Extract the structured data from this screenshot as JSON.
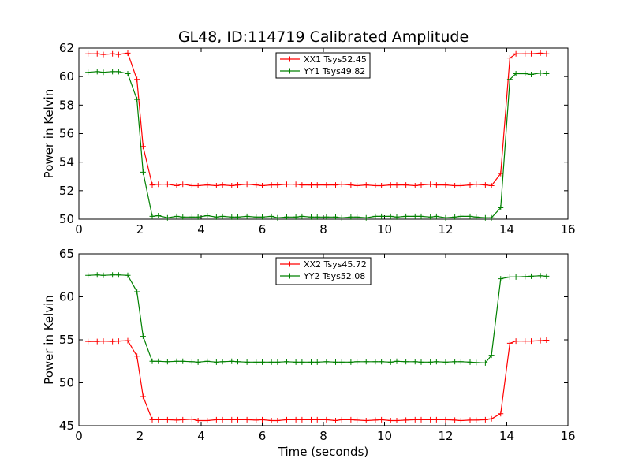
{
  "chart_data": [
    {
      "type": "line",
      "title": "GL48, ID:114719 Calibrated Amplitude",
      "xlabel": "",
      "ylabel": "Power in Kelvin",
      "xlim": [
        0,
        16
      ],
      "ylim": [
        50,
        62
      ],
      "xticks": [
        0,
        2,
        4,
        6,
        8,
        10,
        12,
        14,
        16
      ],
      "yticks": [
        50,
        52,
        54,
        56,
        58,
        60,
        62
      ],
      "legend": "top-center",
      "grid": false,
      "x": [
        0.3,
        0.6,
        0.8,
        1.1,
        1.3,
        1.6,
        1.9,
        2.1,
        2.4,
        2.6,
        2.9,
        3.2,
        3.4,
        3.7,
        3.9,
        4.2,
        4.5,
        4.7,
        5.0,
        5.2,
        5.5,
        5.8,
        6.0,
        6.3,
        6.5,
        6.8,
        7.1,
        7.3,
        7.6,
        7.8,
        8.1,
        8.4,
        8.6,
        8.9,
        9.1,
        9.4,
        9.7,
        9.9,
        10.2,
        10.4,
        10.7,
        11.0,
        11.2,
        11.5,
        11.7,
        12.0,
        12.3,
        12.5,
        12.8,
        13.0,
        13.3,
        13.5,
        13.8,
        14.1,
        14.3,
        14.6,
        14.8,
        15.1,
        15.3
      ],
      "series": [
        {
          "name": "XX1 Tsys52.45",
          "color": "#ff0000",
          "values": [
            61.6,
            61.6,
            61.55,
            61.6,
            61.55,
            61.65,
            59.8,
            55.1,
            52.4,
            52.45,
            52.45,
            52.35,
            52.45,
            52.35,
            52.35,
            52.4,
            52.35,
            52.4,
            52.35,
            52.4,
            52.45,
            52.4,
            52.35,
            52.4,
            52.4,
            52.45,
            52.45,
            52.4,
            52.4,
            52.4,
            52.4,
            52.4,
            52.45,
            52.4,
            52.35,
            52.4,
            52.35,
            52.35,
            52.4,
            52.4,
            52.4,
            52.35,
            52.4,
            52.45,
            52.4,
            52.4,
            52.35,
            52.35,
            52.4,
            52.45,
            52.4,
            52.35,
            53.2,
            61.3,
            61.6,
            61.6,
            61.6,
            61.65,
            61.6
          ]
        },
        {
          "name": "YY1 Tsys49.82",
          "color": "#008000",
          "values": [
            60.3,
            60.35,
            60.3,
            60.35,
            60.35,
            60.2,
            58.4,
            53.3,
            50.2,
            50.25,
            50.1,
            50.2,
            50.15,
            50.15,
            50.15,
            50.25,
            50.15,
            50.2,
            50.15,
            50.15,
            50.2,
            50.15,
            50.15,
            50.2,
            50.1,
            50.15,
            50.15,
            50.2,
            50.15,
            50.15,
            50.15,
            50.15,
            50.1,
            50.15,
            50.15,
            50.1,
            50.2,
            50.2,
            50.2,
            50.15,
            50.2,
            50.2,
            50.2,
            50.15,
            50.2,
            50.1,
            50.15,
            50.2,
            50.2,
            50.15,
            50.1,
            50.1,
            50.8,
            59.8,
            60.2,
            60.2,
            60.15,
            60.25,
            60.2
          ]
        }
      ]
    },
    {
      "type": "line",
      "title": "",
      "xlabel": "Time (seconds)",
      "ylabel": "Power in Kelvin",
      "xlim": [
        0,
        16
      ],
      "ylim": [
        45,
        65
      ],
      "xticks": [
        0,
        2,
        4,
        6,
        8,
        10,
        12,
        14,
        16
      ],
      "yticks": [
        45,
        50,
        55,
        60,
        65
      ],
      "legend": "top-center",
      "grid": false,
      "x": [
        0.3,
        0.6,
        0.8,
        1.1,
        1.3,
        1.6,
        1.9,
        2.1,
        2.4,
        2.6,
        2.9,
        3.2,
        3.4,
        3.7,
        3.9,
        4.2,
        4.5,
        4.7,
        5.0,
        5.2,
        5.5,
        5.8,
        6.0,
        6.3,
        6.5,
        6.8,
        7.1,
        7.3,
        7.6,
        7.8,
        8.1,
        8.4,
        8.6,
        8.9,
        9.1,
        9.4,
        9.7,
        9.9,
        10.2,
        10.4,
        10.7,
        11.0,
        11.2,
        11.5,
        11.7,
        12.0,
        12.3,
        12.5,
        12.8,
        13.0,
        13.3,
        13.5,
        13.8,
        14.1,
        14.3,
        14.6,
        14.8,
        15.1,
        15.3
      ],
      "series": [
        {
          "name": "XX2 Tsys45.72",
          "color": "#ff0000",
          "values": [
            54.8,
            54.8,
            54.85,
            54.8,
            54.85,
            54.9,
            53.1,
            48.4,
            45.7,
            45.7,
            45.7,
            45.65,
            45.7,
            45.75,
            45.6,
            45.6,
            45.7,
            45.7,
            45.7,
            45.7,
            45.7,
            45.65,
            45.7,
            45.6,
            45.6,
            45.7,
            45.7,
            45.7,
            45.7,
            45.7,
            45.7,
            45.6,
            45.7,
            45.7,
            45.65,
            45.6,
            45.65,
            45.7,
            45.6,
            45.6,
            45.65,
            45.7,
            45.7,
            45.7,
            45.7,
            45.7,
            45.65,
            45.6,
            45.65,
            45.65,
            45.7,
            45.8,
            46.4,
            54.6,
            54.85,
            54.85,
            54.85,
            54.9,
            54.95
          ]
        },
        {
          "name": "YY2 Tsys52.08",
          "color": "#008000",
          "values": [
            62.5,
            62.55,
            62.5,
            62.55,
            62.55,
            62.5,
            60.6,
            55.4,
            52.5,
            52.5,
            52.45,
            52.5,
            52.5,
            52.45,
            52.4,
            52.5,
            52.4,
            52.45,
            52.5,
            52.45,
            52.4,
            52.4,
            52.4,
            52.4,
            52.4,
            52.45,
            52.4,
            52.4,
            52.4,
            52.4,
            52.45,
            52.4,
            52.4,
            52.4,
            52.45,
            52.45,
            52.45,
            52.45,
            52.4,
            52.5,
            52.45,
            52.45,
            52.4,
            52.4,
            52.45,
            52.4,
            52.45,
            52.45,
            52.4,
            52.35,
            52.3,
            53.2,
            62.1,
            62.3,
            62.3,
            62.35,
            62.4,
            62.45,
            62.4
          ]
        }
      ]
    }
  ]
}
